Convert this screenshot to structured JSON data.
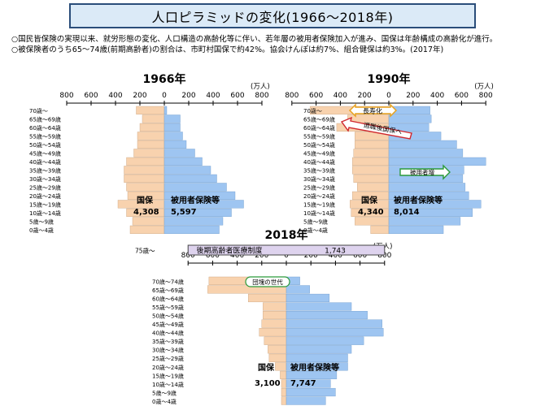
{
  "title": "人口ピラミッドの変化(1966〜2018年)",
  "notes": [
    "○国民皆保険の実現以来、就労形態の変化、人口構造の高齢化等に伴い、若年層の被用者保険加入が進み、国保は年齢構成の高齢化が進行。",
    "○被保険者のうち65〜74歳(前期高齢者)の割合は、市町村国保で約42%。協会けんぽは約7%、組合健保は約3%。(2017年)"
  ],
  "colors": {
    "kokuho": "#f8d2ae",
    "hiyousha": "#9ec5f1",
    "title_bg": "#dbeaf7"
  },
  "chart_data": [
    {
      "type": "bar",
      "title": "1966年",
      "unit": "(万人)",
      "ticks": [
        800,
        600,
        400,
        200,
        0,
        200,
        400,
        600,
        800
      ],
      "xlim": [
        -800,
        800
      ],
      "age_groups": [
        "70歳〜",
        "65歳〜69歳",
        "60歳〜64歳",
        "55歳〜59歳",
        "50歳〜54歳",
        "45歳〜49歳",
        "40歳〜44歳",
        "35歳〜39歳",
        "30歳〜34歳",
        "25歳〜29歳",
        "20歳〜24歳",
        "15歳〜19歳",
        "10歳〜14歳",
        "5歳〜9歳",
        "0歳〜4歳"
      ],
      "series": [
        {
          "name": "国保",
          "side": "left",
          "values": [
            230,
            180,
            200,
            220,
            220,
            250,
            310,
            330,
            330,
            310,
            300,
            380,
            310,
            260,
            280
          ]
        },
        {
          "name": "被用者保険等",
          "side": "right",
          "values": [
            20,
            130,
            130,
            150,
            180,
            250,
            310,
            380,
            430,
            510,
            580,
            650,
            550,
            480,
            450
          ]
        }
      ],
      "totals": [
        {
          "label": "国保",
          "value": "4,308"
        },
        {
          "label": "被用者保険等",
          "value": "5,597"
        }
      ],
      "annotations": []
    },
    {
      "type": "bar",
      "title": "1990年",
      "unit": "(万人)",
      "ticks": [
        800,
        600,
        400,
        200,
        0,
        200,
        400,
        600,
        800
      ],
      "xlim": [
        -800,
        800
      ],
      "age_groups": [
        "70歳〜",
        "65歳〜69歳",
        "60歳〜64歳",
        "55歳〜59歳",
        "50歳〜54歳",
        "45歳〜49歳",
        "40歳〜44歳",
        "35歳〜39歳",
        "30歳〜34歳",
        "25歳〜29歳",
        "20歳〜24歳",
        "15歳〜19歳",
        "10歳〜14歳",
        "5歳〜9歳",
        "0歳〜4歳"
      ],
      "series": [
        {
          "name": "国保",
          "side": "left",
          "values": [
            650,
            340,
            430,
            280,
            280,
            290,
            300,
            300,
            290,
            260,
            300,
            320,
            310,
            280,
            150
          ]
        },
        {
          "name": "被用者保険等",
          "side": "right",
          "values": [
            340,
            350,
            330,
            430,
            560,
            610,
            800,
            620,
            610,
            630,
            660,
            760,
            690,
            590,
            450
          ]
        }
      ],
      "totals": [
        {
          "label": "国保",
          "value": "4,340"
        },
        {
          "label": "被用者保険等",
          "value": "8,014"
        }
      ],
      "annotations": [
        "長寿化",
        "退職後国保へ",
        "被用者増"
      ]
    },
    {
      "type": "bar",
      "title": "2018年",
      "unit": "(万人)",
      "ticks": [
        800,
        600,
        400,
        200,
        0,
        200,
        400,
        600,
        800
      ],
      "xlim": [
        -800,
        800
      ],
      "age_groups": [
        "70歳〜74歳",
        "65歳〜69歳",
        "60歳〜64歳",
        "55歳〜59歳",
        "50歳〜54歳",
        "45歳〜49歳",
        "40歳〜44歳",
        "35歳〜39歳",
        "30歳〜34歳",
        "25歳〜29歳",
        "20歳〜24歳",
        "15歳〜19歳",
        "10歳〜14歳",
        "5歳〜9歳",
        "0歳〜4歳"
      ],
      "series": [
        {
          "name": "国保",
          "side": "left",
          "values": [
            630,
            640,
            310,
            190,
            190,
            200,
            220,
            180,
            150,
            140,
            90,
            50,
            40,
            40,
            40
          ]
        },
        {
          "name": "被用者保険等",
          "side": "right",
          "values": [
            110,
            190,
            350,
            530,
            660,
            780,
            790,
            630,
            530,
            500,
            500,
            410,
            360,
            400,
            320
          ]
        }
      ],
      "totals": [
        {
          "label": "国保",
          "value": "3,100"
        },
        {
          "label": "被用者保険等",
          "value": "7,747"
        }
      ],
      "annotations": [
        "団塊の世代"
      ],
      "elderly_band": {
        "age_label": "75歳〜",
        "name": "後期高齢者医療制度",
        "value": "1,743"
      }
    }
  ]
}
